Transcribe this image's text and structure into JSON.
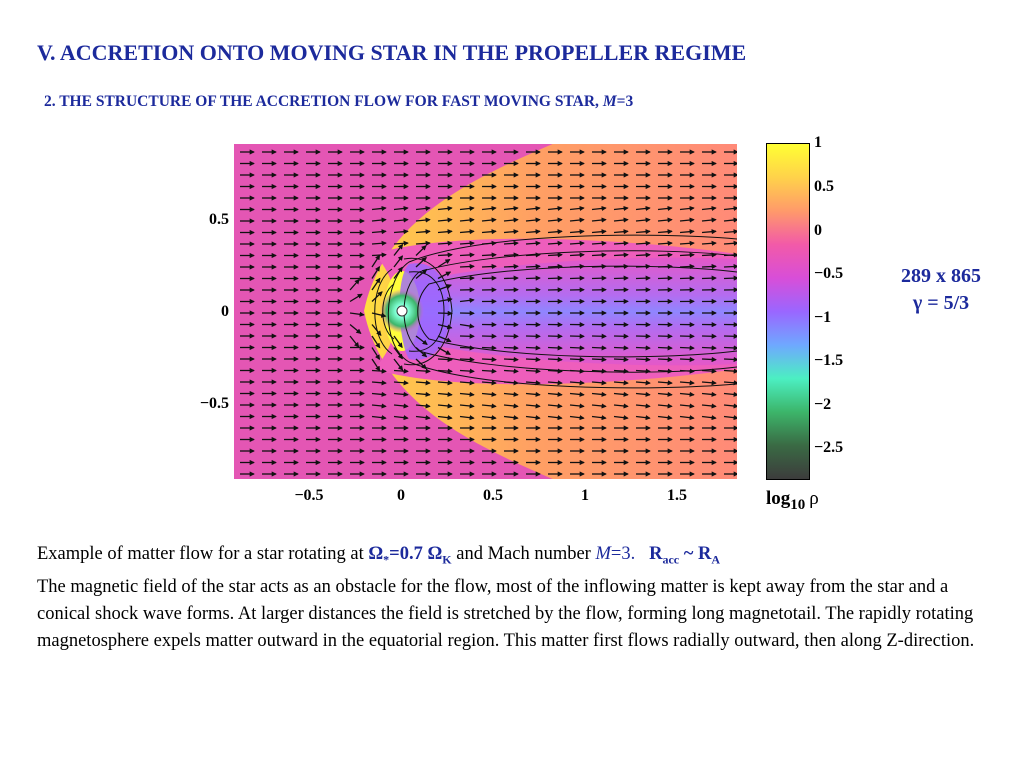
{
  "title": "V. ACCRETION ONTO MOVING STAR IN THE PROPELLER REGIME",
  "subtitle": {
    "text": "2. THE STRUCTURE OF THE ACCRETION FLOW FOR FAST MOVING STAR,",
    "mach_symbol": "M",
    "mach_value": "=3"
  },
  "plot": {
    "x_ticks": [
      "−0.5",
      "0",
      "0.5",
      "1",
      "1.5"
    ],
    "y_ticks": [
      "0.5",
      "0",
      "−0.5"
    ]
  },
  "colorbar": {
    "labels": [
      "1",
      "0.5",
      "0",
      "−0.5",
      "−1",
      "−1.5",
      "−2",
      "−2.5"
    ],
    "title_main": "log",
    "title_sub": "10",
    "title_symbol": "ρ",
    "colors": [
      "#ffff33",
      "#ffd24a",
      "#ff9a6a",
      "#f25aa8",
      "#d84ed8",
      "#9a66ff",
      "#6fa8ff",
      "#4cefc2",
      "#3cb56a",
      "#3a6a44",
      "#3c3c3c"
    ]
  },
  "grid_info": {
    "resolution": "289 x 865",
    "gamma": "γ = 5/3"
  },
  "caption": {
    "line1_prefix": "Example of matter flow for a star rotating at",
    "omega_star": "Ω",
    "omega_star_sub": "*",
    "omega_rel": "=0.7 Ω",
    "omega_k_sub": "K",
    "mach_text": "and Mach number",
    "mach_symbol": "M",
    "mach_value": "=3.",
    "racc": "R",
    "racc_sub": "acc",
    "tilde": " ~ R",
    "ra_sub": "A",
    "paragraph": "The magnetic field of the star acts as an obstacle for the flow, most of the inflowing matter is kept away from the star and a conical shock wave forms. At larger distances the field is stretched by the flow, forming long magnetotail. The rapidly rotating magnetosphere expels matter outward in the equatorial region. This matter first flows radially outward, then along Z-direction."
  }
}
